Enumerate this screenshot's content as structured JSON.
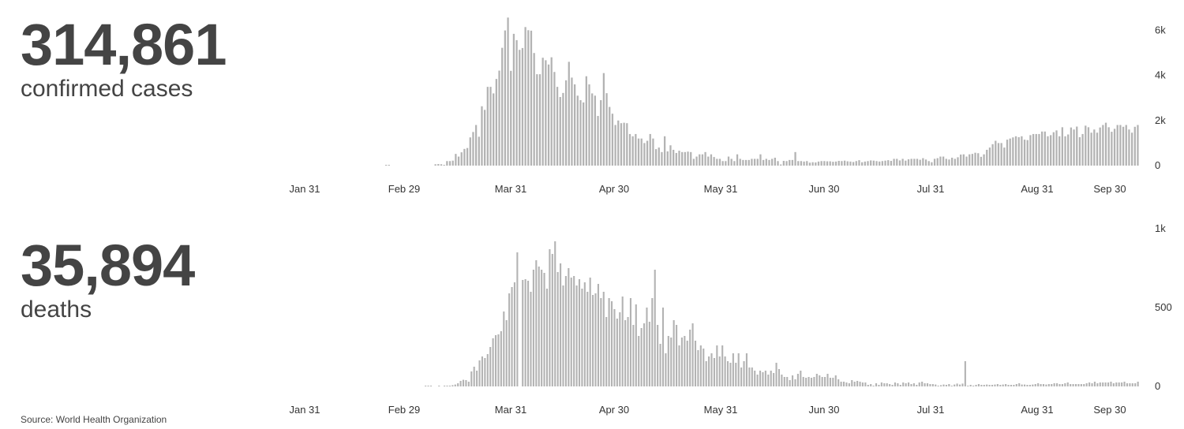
{
  "cases_stat": {
    "value": "314,861",
    "label": "confirmed cases"
  },
  "deaths_stat": {
    "value": "35,894",
    "label": "deaths"
  },
  "source": {
    "label": "Source:",
    "name": "World Health Organization"
  },
  "colors": {
    "bar": "#b3b3b3",
    "text": "#444444"
  },
  "chart_data": [
    {
      "type": "bar",
      "title": "confirmed cases",
      "x_start": "Jan 31",
      "x_end": "Oct 06",
      "x_ticks": [
        "Jan 31",
        "Feb 29",
        "Mar 31",
        "Apr 30",
        "May 31",
        "Jun 30",
        "Jul 31",
        "Aug 31",
        "Sep 30"
      ],
      "y_ticks": [
        {
          "value": 0,
          "label": "0"
        },
        {
          "value": 2000,
          "label": "2k"
        },
        {
          "value": 4000,
          "label": "4k"
        },
        {
          "value": 6000,
          "label": "6k"
        }
      ],
      "ylim": [
        0,
        6500
      ],
      "grid": false,
      "values": [
        10,
        0,
        0,
        0,
        0,
        0,
        0,
        0,
        0,
        0,
        0,
        0,
        0,
        0,
        0,
        0,
        0,
        0,
        0,
        0,
        0,
        0,
        0,
        0,
        0,
        0,
        0,
        0,
        0,
        0,
        0,
        0,
        0,
        0,
        0,
        0,
        0,
        0,
        0,
        0,
        0,
        0,
        0,
        0,
        0,
        0,
        0,
        0,
        0,
        0,
        0,
        0,
        0,
        0,
        0,
        0,
        0,
        0,
        0,
        0,
        0,
        0,
        0,
        0,
        0,
        0,
        0,
        0,
        0,
        0,
        0,
        0,
        0,
        0,
        0,
        0,
        0,
        0,
        0,
        0,
        0,
        0,
        0,
        0,
        0,
        0,
        0,
        0,
        0,
        0,
        0,
        0,
        0,
        0,
        0,
        0,
        0,
        0,
        0,
        0,
        0,
        0,
        0,
        0,
        0,
        0,
        0,
        0,
        0,
        0,
        0,
        0,
        0,
        0,
        0,
        0,
        0,
        0,
        0,
        0,
        0,
        0,
        0,
        0,
        0,
        0,
        0,
        0,
        0,
        0,
        0,
        0,
        0,
        0,
        0,
        0,
        0,
        0,
        0,
        0,
        0,
        0,
        0,
        0,
        0,
        0,
        0,
        0,
        0,
        0,
        0,
        0,
        0,
        0,
        0,
        0,
        0,
        0,
        0,
        0,
        0,
        0,
        0,
        0,
        0,
        0,
        0,
        0,
        0,
        0,
        0,
        0,
        0,
        0,
        0,
        0,
        0,
        0,
        0,
        0,
        0,
        0,
        0,
        0,
        0,
        0,
        0,
        0,
        0,
        0,
        0,
        0,
        0,
        0,
        0,
        0,
        0,
        0,
        0,
        0,
        0,
        0,
        0,
        0,
        0,
        0,
        0,
        0,
        0,
        0,
        0,
        0,
        0,
        0,
        0,
        0,
        0,
        0,
        0,
        0,
        0,
        0,
        0,
        0,
        0,
        0,
        0,
        0,
        0,
        0,
        0,
        0,
        0,
        0,
        0,
        0,
        0,
        0,
        0,
        0,
        0,
        0,
        0,
        0,
        0,
        0,
        0,
        0,
        0,
        0,
        0,
        0,
        0,
        0,
        0,
        0,
        0,
        0,
        0,
        0
      ],
      "values_note": "",
      "daily": [
        0,
        0,
        0,
        0,
        0,
        0,
        0,
        0,
        0,
        0,
        0,
        0,
        0,
        0,
        0,
        0,
        0,
        0,
        0,
        0,
        0,
        0,
        0,
        0,
        0,
        0,
        0,
        0,
        0,
        0,
        0,
        2,
        1,
        0,
        0,
        0,
        0,
        0,
        0,
        0,
        0,
        0,
        0,
        0,
        0,
        0,
        0,
        0,
        60,
        70,
        60,
        20,
        200,
        200,
        220,
        520,
        400,
        590,
        740,
        780,
        1250,
        1490,
        1800,
        1280,
        2630,
        2470,
        3490,
        3490,
        3200,
        3840,
        4210,
        5220,
        5990,
        6560,
        4200,
        5840,
        5560,
        5130,
        5210,
        6140,
        6000,
        5980,
        4990,
        4050,
        4050,
        4780,
        4670,
        4480,
        4800,
        4150,
        3490,
        3040,
        3220,
        3780,
        4600,
        3900,
        3600,
        3100,
        2900,
        2800,
        3960,
        3600,
        3200,
        3100,
        2200,
        2900,
        4100,
        3210,
        2600,
        2300,
        1800,
        2000,
        1880,
        1900,
        1880,
        1400,
        1300,
        1400,
        1200,
        1200,
        1000,
        1100,
        1400,
        1200,
        730,
        800,
        600,
        1300,
        630,
        900,
        700,
        560,
        660,
        600,
        600,
        620,
        600,
        300,
        400,
        500,
        500,
        600,
        400,
        500,
        380,
        300,
        300,
        200,
        200,
        400,
        300,
        200,
        500,
        300,
        250,
        250,
        250,
        300,
        300,
        300,
        500,
        250,
        300,
        250,
        300,
        350,
        200,
        50,
        210,
        200,
        250,
        250,
        600,
        200,
        200,
        180,
        200,
        130,
        150,
        140,
        180,
        200,
        200,
        190,
        190,
        170,
        180,
        210,
        200,
        220,
        190,
        180,
        160,
        200,
        240,
        150,
        180,
        200,
        230,
        220,
        200,
        180,
        200,
        220,
        240,
        210,
        300,
        300,
        230,
        300,
        220,
        280,
        300,
        300,
        300,
        260,
        330,
        270,
        200,
        150,
        300,
        330,
        400,
        400,
        300,
        270,
        350,
        300,
        370,
        490,
        500,
        400,
        500,
        520,
        570,
        550,
        390,
        500,
        700,
        800,
        950,
        1100,
        1000,
        1000,
        800,
        1150,
        1200,
        1250,
        1300,
        1260,
        1300,
        1150,
        1130,
        1350,
        1400,
        1400,
        1400,
        1510,
        1510,
        1300,
        1350,
        1480,
        1560,
        1300,
        1700,
        1300,
        1380,
        1690,
        1600,
        1730,
        1260,
        1400,
        1770,
        1700,
        1460,
        1600,
        1460,
        1690,
        1800,
        1900,
        1700,
        1500,
        1630,
        1800,
        1800,
        1720,
        1800,
        1600,
        1460,
        1720,
        1800
      ]
    },
    {
      "type": "bar",
      "title": "deaths",
      "x_start": "Jan 31",
      "x_end": "Oct 06",
      "x_ticks": [
        "Jan 31",
        "Feb 29",
        "Mar 31",
        "Apr 30",
        "May 31",
        "Jun 30",
        "Jul 31",
        "Aug 31",
        "Sep 30"
      ],
      "y_ticks": [
        {
          "value": 0,
          "label": "0"
        },
        {
          "value": 500,
          "label": "500"
        },
        {
          "value": 1000,
          "label": "1k"
        }
      ],
      "ylim": [
        0,
        1000
      ],
      "grid": false,
      "daily": [
        0,
        0,
        0,
        0,
        0,
        0,
        0,
        0,
        0,
        0,
        0,
        0,
        0,
        0,
        0,
        0,
        0,
        0,
        0,
        0,
        0,
        0,
        0,
        0,
        0,
        0,
        0,
        0,
        0,
        0,
        0,
        0,
        0,
        0,
        0,
        0,
        0,
        0,
        0,
        0,
        0,
        0,
        0,
        0,
        0,
        0,
        0,
        0,
        1,
        1,
        1,
        0,
        0,
        2,
        0,
        3,
        5,
        5,
        8,
        12,
        20,
        35,
        42,
        40,
        30,
        95,
        125,
        100,
        165,
        190,
        180,
        205,
        250,
        305,
        325,
        330,
        350,
        475,
        420,
        590,
        630,
        660,
        850,
        0,
        675,
        680,
        670,
        600,
        740,
        800,
        760,
        740,
        720,
        620,
        870,
        840,
        920,
        725,
        780,
        640,
        700,
        750,
        690,
        700,
        640,
        680,
        620,
        660,
        600,
        690,
        580,
        590,
        650,
        560,
        600,
        440,
        560,
        540,
        490,
        430,
        470,
        570,
        420,
        440,
        560,
        390,
        520,
        320,
        370,
        400,
        500,
        410,
        560,
        740,
        390,
        270,
        500,
        210,
        320,
        310,
        420,
        390,
        260,
        310,
        320,
        290,
        360,
        400,
        290,
        230,
        260,
        240,
        160,
        190,
        210,
        180,
        260,
        190,
        260,
        190,
        160,
        150,
        210,
        150,
        210,
        120,
        160,
        210,
        120,
        120,
        100,
        75,
        100,
        90,
        100,
        75,
        100,
        85,
        150,
        110,
        75,
        60,
        60,
        40,
        70,
        45,
        80,
        100,
        60,
        55,
        60,
        55,
        60,
        80,
        70,
        60,
        60,
        80,
        55,
        55,
        70,
        45,
        30,
        30,
        25,
        20,
        40,
        30,
        35,
        30,
        25,
        25,
        10,
        15,
        5,
        20,
        10,
        25,
        20,
        20,
        15,
        10,
        25,
        20,
        10,
        25,
        20,
        25,
        15,
        20,
        10,
        25,
        30,
        20,
        20,
        15,
        15,
        12,
        5,
        8,
        12,
        10,
        15,
        5,
        12,
        18,
        12,
        18,
        160,
        5,
        10,
        5,
        10,
        15,
        10,
        10,
        12,
        10,
        10,
        12,
        15,
        10,
        12,
        15,
        10,
        10,
        10,
        15,
        20,
        12,
        12,
        10,
        10,
        12,
        15,
        20,
        15,
        15,
        12,
        15,
        15,
        20,
        20,
        15,
        15,
        20,
        25,
        15,
        15,
        15,
        15,
        15,
        15,
        20,
        25,
        20,
        30,
        20,
        25,
        25,
        25,
        25,
        30,
        20,
        25,
        25,
        25,
        30,
        20,
        20,
        20,
        20,
        30
      ]
    }
  ]
}
